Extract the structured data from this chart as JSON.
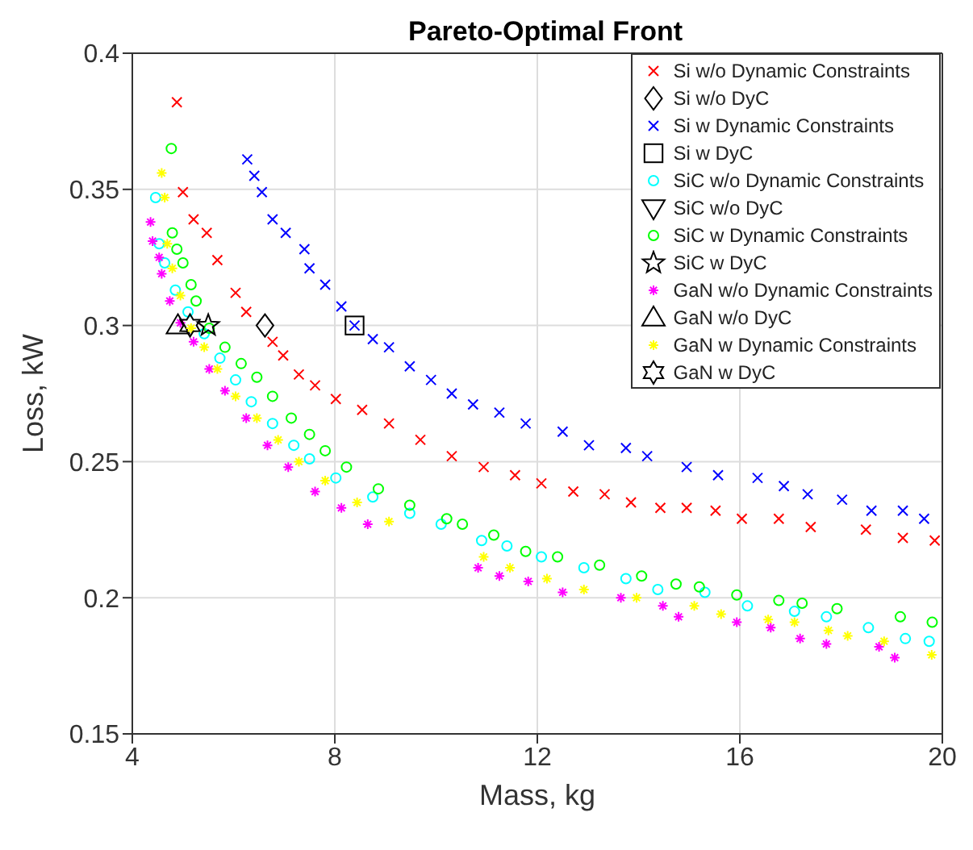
{
  "chart_data": {
    "type": "scatter",
    "title": "Pareto-Optimal Front",
    "xlabel": "Mass, kg",
    "ylabel": "Loss, kW",
    "xlim": [
      4,
      20
    ],
    "xticks": [
      4,
      8,
      12,
      16,
      20
    ],
    "ylim": [
      0.15,
      0.4
    ],
    "yticks": [
      0.15,
      0.2,
      0.25,
      0.3,
      0.35,
      0.4
    ],
    "grid": true,
    "legend": "top right",
    "series": [
      {
        "name": "Si w/o Dynamic Constraints",
        "color": "#ff0000",
        "marker": "cross",
        "x": [
          4.88,
          5.0,
          5.21,
          5.47,
          5.68,
          6.04,
          6.25,
          6.77,
          6.98,
          7.29,
          7.61,
          8.02,
          8.54,
          9.07,
          9.69,
          10.31,
          10.94,
          11.56,
          12.08,
          12.71,
          13.33,
          13.85,
          14.43,
          14.95,
          15.52,
          16.04,
          16.77,
          17.4,
          18.49,
          19.22,
          19.85
        ],
        "values": [
          0.382,
          0.349,
          0.339,
          0.334,
          0.324,
          0.312,
          0.305,
          0.294,
          0.289,
          0.282,
          0.278,
          0.273,
          0.269,
          0.264,
          0.258,
          0.252,
          0.248,
          0.245,
          0.242,
          0.239,
          0.238,
          0.235,
          0.233,
          0.233,
          0.232,
          0.229,
          0.229,
          0.226,
          0.225,
          0.222,
          0.221
        ]
      },
      {
        "name": "Si w/o DyC",
        "color": "#000000",
        "marker": "diamond",
        "x": [
          6.62
        ],
        "values": [
          0.3
        ]
      },
      {
        "name": "Si w Dynamic Constraints",
        "color": "#0000ff",
        "marker": "cross",
        "x": [
          6.27,
          6.41,
          6.56,
          6.77,
          7.03,
          7.4,
          7.5,
          7.81,
          8.13,
          8.39,
          8.75,
          9.07,
          9.48,
          9.9,
          10.31,
          10.73,
          11.25,
          11.77,
          12.5,
          13.02,
          13.75,
          14.17,
          14.95,
          15.57,
          16.35,
          16.87,
          17.34,
          18.02,
          18.6,
          19.22,
          19.64
        ],
        "values": [
          0.361,
          0.355,
          0.349,
          0.339,
          0.334,
          0.328,
          0.321,
          0.315,
          0.307,
          0.3,
          0.295,
          0.292,
          0.285,
          0.28,
          0.275,
          0.271,
          0.268,
          0.264,
          0.261,
          0.256,
          0.255,
          0.252,
          0.248,
          0.245,
          0.244,
          0.241,
          0.238,
          0.236,
          0.232,
          0.232,
          0.229
        ]
      },
      {
        "name": "Si w DyC",
        "color": "#000000",
        "marker": "square",
        "x": [
          8.39
        ],
        "values": [
          0.3
        ]
      },
      {
        "name": "SiC w/o Dynamic Constraints",
        "color": "#00ffff",
        "marker": "circle",
        "x": [
          4.46,
          4.53,
          4.64,
          4.85,
          5.1,
          5.42,
          5.73,
          6.04,
          6.35,
          6.77,
          7.19,
          7.5,
          8.02,
          8.75,
          9.48,
          10.1,
          10.9,
          11.4,
          12.08,
          12.92,
          13.75,
          14.38,
          15.31,
          16.15,
          17.08,
          17.71,
          18.54,
          19.27,
          19.74
        ],
        "values": [
          0.347,
          0.33,
          0.323,
          0.313,
          0.305,
          0.297,
          0.288,
          0.28,
          0.272,
          0.264,
          0.256,
          0.251,
          0.244,
          0.237,
          0.231,
          0.227,
          0.221,
          0.219,
          0.215,
          0.211,
          0.207,
          0.203,
          0.202,
          0.197,
          0.195,
          0.193,
          0.189,
          0.185,
          0.184
        ]
      },
      {
        "name": "SiC w/o DyC",
        "color": "#000000",
        "marker": "triangle",
        "x": [
          null
        ],
        "values": [
          null
        ]
      },
      {
        "name": "SiC w Dynamic Constraints",
        "color": "#00ff00",
        "marker": "circle",
        "x": [
          4.77,
          4.79,
          4.88,
          5.0,
          5.16,
          5.26,
          5.52,
          5.83,
          6.15,
          6.46,
          6.77,
          7.14,
          7.5,
          7.81,
          8.23,
          8.86,
          9.48,
          10.21,
          10.52,
          11.14,
          11.77,
          12.4,
          13.23,
          14.06,
          14.74,
          15.2,
          15.94,
          16.77,
          17.23,
          17.92,
          19.17,
          19.8
        ],
        "values": [
          0.365,
          0.334,
          0.328,
          0.323,
          0.315,
          0.309,
          0.299,
          0.292,
          0.286,
          0.281,
          0.274,
          0.266,
          0.26,
          0.254,
          0.248,
          0.24,
          0.234,
          0.229,
          0.227,
          0.223,
          0.217,
          0.215,
          0.212,
          0.208,
          0.205,
          0.204,
          0.201,
          0.199,
          0.198,
          0.196,
          0.193,
          0.191
        ]
      },
      {
        "name": "SiC w DyC",
        "color": "#000000",
        "marker": "star",
        "x": [
          5.5
        ],
        "values": [
          0.3
        ]
      },
      {
        "name": "GaN w/o Dynamic Constraints",
        "color": "#ff00ff",
        "marker": "cross",
        "x": [
          4.36,
          4.4,
          4.53,
          4.58,
          4.74,
          4.95,
          5.21,
          5.52,
          5.83,
          6.25,
          6.67,
          7.08,
          7.61,
          8.13,
          8.65,
          10.83,
          11.25,
          11.82,
          12.5,
          13.65,
          14.48,
          14.79,
          15.94,
          16.61,
          17.19,
          17.71,
          18.75,
          19.06
        ],
        "values": [
          0.338,
          0.331,
          0.325,
          0.319,
          0.309,
          0.301,
          0.294,
          0.284,
          0.276,
          0.266,
          0.256,
          0.248,
          0.239,
          0.233,
          0.227,
          0.211,
          0.208,
          0.206,
          0.202,
          0.2,
          0.197,
          0.193,
          0.191,
          0.189,
          0.185,
          0.183,
          0.182,
          0.178
        ]
      },
      {
        "name": "GaN w/o DyC",
        "color": "#000000",
        "marker": "triangle",
        "x": [
          4.9
        ],
        "values": [
          0.3
        ]
      },
      {
        "name": "GaN w Dynamic Constraints",
        "color": "#ffff00",
        "marker": "cross",
        "x": [
          4.58,
          4.64,
          4.69,
          4.79,
          4.95,
          5.16,
          5.42,
          5.68,
          6.04,
          6.46,
          6.88,
          7.29,
          7.81,
          8.44,
          9.07,
          10.94,
          11.46,
          12.19,
          12.92,
          13.96,
          15.1,
          15.63,
          16.56,
          17.08,
          17.75,
          18.13,
          18.85,
          19.79
        ],
        "values": [
          0.356,
          0.347,
          0.33,
          0.321,
          0.311,
          0.299,
          0.292,
          0.284,
          0.274,
          0.266,
          0.258,
          0.25,
          0.243,
          0.235,
          0.228,
          0.215,
          0.211,
          0.207,
          0.203,
          0.2,
          0.197,
          0.194,
          0.192,
          0.191,
          0.188,
          0.186,
          0.184,
          0.179
        ]
      },
      {
        "name": "GaN w DyC",
        "color": "#000000",
        "marker": "cross",
        "x": [
          5.14
        ],
        "values": [
          0.3
        ]
      }
    ]
  }
}
